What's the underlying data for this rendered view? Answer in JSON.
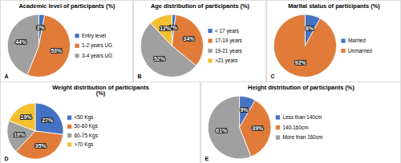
{
  "chart_data": [
    {
      "type": "pie",
      "title": "Academic level of participants (%)",
      "categories": [
        "Entry level",
        "1-2 years UG",
        "3-4 years UG"
      ],
      "values": [
        3,
        53,
        44
      ],
      "value_labels": [
        "3%",
        "53%",
        "44%"
      ],
      "colors": [
        "#4472c4",
        "#e07b39",
        "#a0a0a0"
      ],
      "data_labels": true,
      "legend": "right",
      "annotations": [
        "A"
      ]
    },
    {
      "type": "pie",
      "title": "Age distribution of participants (%)",
      "categories": [
        "< 17 years",
        "17-19 years",
        "19-21 years",
        ">21 years"
      ],
      "values": [
        2,
        34,
        52,
        12
      ],
      "value_labels": [
        "2%",
        "34%",
        "52%",
        "12%"
      ],
      "colors": [
        "#4472c4",
        "#e07b39",
        "#a0a0a0",
        "#f0c030"
      ],
      "data_labels": true,
      "legend": "right",
      "annotations": [
        "B"
      ]
    },
    {
      "type": "pie",
      "title": "Marital status of participants (%)",
      "categories": [
        "Married",
        "Unmarried"
      ],
      "values": [
        8,
        92
      ],
      "value_labels": [
        "8%",
        "92%"
      ],
      "colors": [
        "#4472c4",
        "#e07b39"
      ],
      "data_labels": true,
      "legend": "right",
      "annotations": [
        "C"
      ]
    },
    {
      "type": "pie",
      "title": "Weight distribution of participants\n(%)",
      "categories": [
        "<50 Kgs",
        "50-60 Kgs",
        "60-75 Kgs",
        ">70 Kgs"
      ],
      "values": [
        27,
        35,
        19,
        19
      ],
      "value_labels": [
        "27%",
        "35%",
        "19%",
        "19%"
      ],
      "colors": [
        "#4472c4",
        "#e07b39",
        "#a0a0a0",
        "#f0c030"
      ],
      "data_labels": true,
      "legend": "right",
      "annotations": [
        "D"
      ]
    },
    {
      "type": "pie",
      "title": "Height distribution of participants (%)",
      "categories": [
        "Less than 140cm",
        "140-160cm",
        "More than 160cm"
      ],
      "values": [
        9,
        39,
        61
      ],
      "value_labels": [
        "9%",
        "39%",
        "61%"
      ],
      "colors": [
        "#4472c4",
        "#e07b39",
        "#a0a0a0"
      ],
      "data_labels": true,
      "legend": "right",
      "annotations": [
        "E"
      ]
    }
  ]
}
